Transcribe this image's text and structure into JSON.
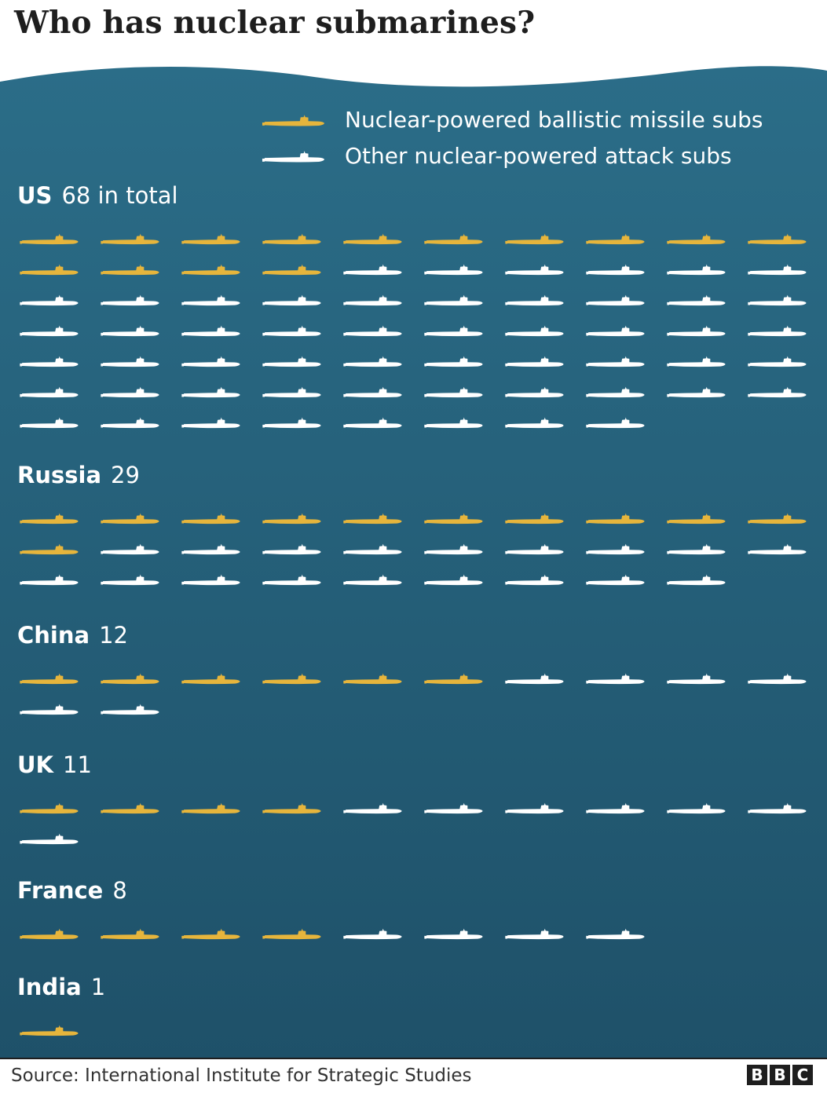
{
  "title": "Who has nuclear submarines?",
  "colors": {
    "ballistic": "#e6b53c",
    "attack": "#ffffff",
    "ocean_top": "#2b6d88",
    "ocean_bottom": "#1e5068"
  },
  "legend": {
    "ballistic_label": "Nuclear-powered ballistic missile subs",
    "attack_label": "Other nuclear-powered attack subs",
    "ballistic_icon": "submarine-icon",
    "attack_icon": "submarine-icon"
  },
  "source": "Source: International Institute for Strategic Studies",
  "logo": [
    "B",
    "B",
    "C"
  ],
  "chart_data": {
    "type": "table",
    "title": "Who has nuclear submarines?",
    "series_names": [
      "Nuclear-powered ballistic missile subs",
      "Other nuclear-powered attack subs"
    ],
    "countries": [
      {
        "name": "US",
        "count_label": "68 in total",
        "total": 68,
        "ballistic": 14,
        "attack": 54
      },
      {
        "name": "Russia",
        "count_label": "29",
        "total": 29,
        "ballistic": 11,
        "attack": 18
      },
      {
        "name": "China",
        "count_label": "12",
        "total": 12,
        "ballistic": 6,
        "attack": 6
      },
      {
        "name": "UK",
        "count_label": "11",
        "total": 11,
        "ballistic": 4,
        "attack": 7
      },
      {
        "name": "France",
        "count_label": "8",
        "total": 8,
        "ballistic": 4,
        "attack": 4
      },
      {
        "name": "India",
        "count_label": "1",
        "total": 1,
        "ballistic": 1,
        "attack": 0
      }
    ]
  }
}
